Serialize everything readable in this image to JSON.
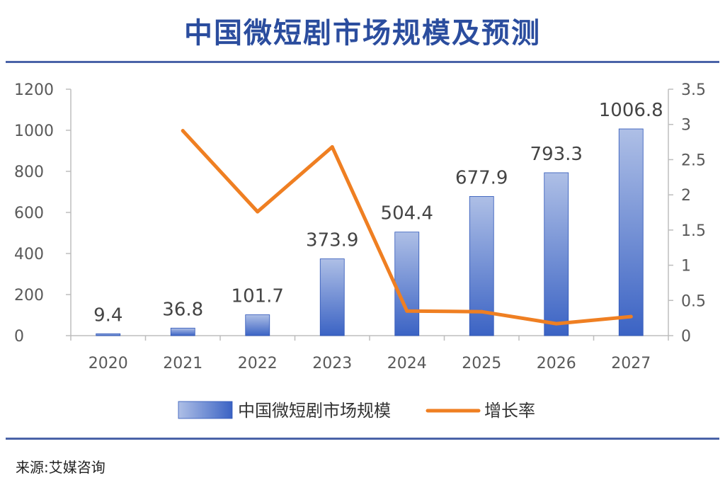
{
  "title": "中国微短剧市场规模及预测",
  "source": "来源:艾媒咨询",
  "colors": {
    "bar": "#3b63c4",
    "bar_light": "#aebfe6",
    "line": "#ef7f22",
    "title": "#2b4d9e",
    "rule": "#4a63a8"
  },
  "chart_data": {
    "type": "bar",
    "categories": [
      "2020",
      "2021",
      "2022",
      "2023",
      "2024",
      "2025",
      "2026",
      "2027"
    ],
    "series": [
      {
        "name": "中国微短剧市场规模",
        "type": "bar",
        "axis": "left",
        "values": [
          9.4,
          36.8,
          101.7,
          373.9,
          504.4,
          677.9,
          793.3,
          1006.8
        ],
        "data_labels": [
          "9.4",
          "36.8",
          "101.7",
          "373.9",
          "504.4",
          "677.9",
          "793.3",
          "1006.8"
        ]
      },
      {
        "name": "增长率",
        "type": "line",
        "axis": "right",
        "values": [
          null,
          2.91,
          1.76,
          2.68,
          0.35,
          0.34,
          0.17,
          0.27
        ]
      }
    ],
    "y_left": {
      "ylim": [
        0,
        1200
      ],
      "ticks": [
        "0",
        "200",
        "400",
        "600",
        "800",
        "1000",
        "1200"
      ]
    },
    "y_right": {
      "ylim": [
        0,
        3.5
      ],
      "ticks": [
        "0",
        "0.5",
        "1",
        "1.5",
        "2",
        "2.5",
        "3",
        "3.5"
      ]
    },
    "grid": false,
    "legend": "bottom"
  }
}
